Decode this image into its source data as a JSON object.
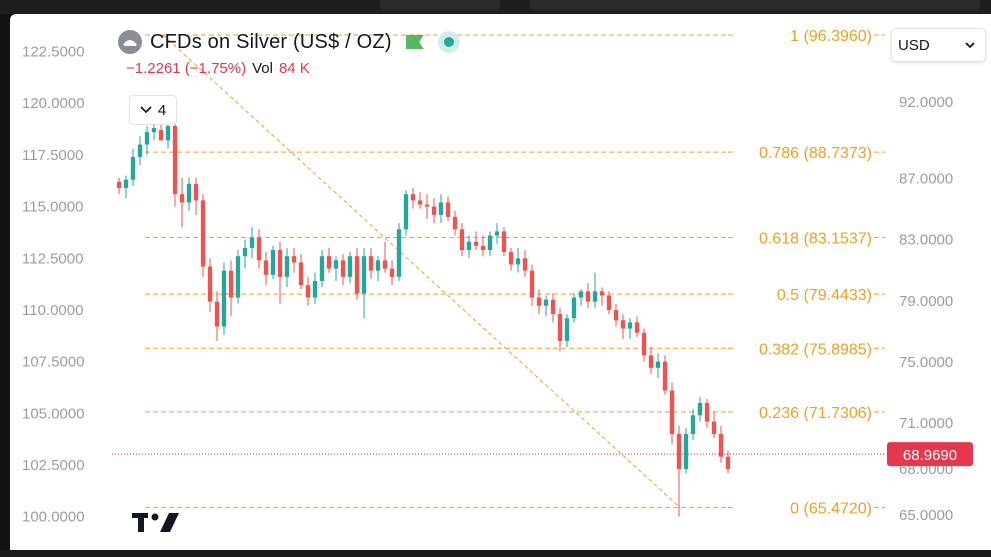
{
  "legend": {
    "title": "CFDs on Silver (US$ / OZ)",
    "change": "−1.2261 (−1.75%)",
    "vol_label": "Vol",
    "vol_value": "84 K"
  },
  "controls": {
    "collapse_count": "4",
    "currency": "USD"
  },
  "colors": {
    "up": "#26a69a",
    "down": "#ef5350",
    "fib": "#f0a020",
    "price_tag": "#e5384c",
    "axis_text": "#9a9da6"
  },
  "chart_data": {
    "type": "candlestick",
    "left_axis": {
      "ticks": [
        "122.5000",
        "120.0000",
        "117.5000",
        "115.0000",
        "112.5000",
        "110.0000",
        "107.5000",
        "105.0000",
        "102.5000",
        "100.0000"
      ],
      "range": [
        99.5,
        123.3
      ]
    },
    "right_axis": {
      "ticks": [
        "92.0000",
        "87.0000",
        "83.0000",
        "79.0000",
        "75.0000",
        "71.0000",
        "68.0000",
        "65.0000"
      ],
      "range": [
        64.2,
        96.4
      ]
    },
    "last_price": "68.9690",
    "fibonacci": [
      {
        "label": "1 (96.3960)",
        "ratio": 1,
        "price": 96.396
      },
      {
        "label": "0.786 (88.7373)",
        "ratio": 0.786,
        "price": 88.7373
      },
      {
        "label": "0.618 (83.1537)",
        "ratio": 0.618,
        "price": 83.1537
      },
      {
        "label": "0.5 (79.4433)",
        "ratio": 0.5,
        "price": 79.4433
      },
      {
        "label": "0.382 (75.8985)",
        "ratio": 0.382,
        "price": 75.8985
      },
      {
        "label": "0.236 (71.7306)",
        "ratio": 0.236,
        "price": 71.7306
      },
      {
        "label": "0 (65.4720)",
        "ratio": 0,
        "price": 65.472
      }
    ],
    "candles": [
      [
        116.2,
        116.4,
        115.6,
        115.9
      ],
      [
        115.9,
        116.5,
        115.4,
        116.3
      ],
      [
        116.3,
        117.8,
        116.0,
        117.4
      ],
      [
        117.4,
        118.4,
        117.0,
        118.0
      ],
      [
        118.0,
        118.9,
        117.5,
        118.6
      ],
      [
        118.6,
        119.0,
        118.2,
        118.8
      ],
      [
        118.7,
        119.4,
        118.4,
        118.2
      ],
      [
        118.2,
        119.0,
        117.8,
        118.9
      ],
      [
        118.9,
        119.4,
        115.0,
        115.6
      ],
      [
        115.6,
        116.4,
        114.0,
        115.2
      ],
      [
        115.2,
        116.4,
        114.8,
        116.1
      ],
      [
        116.1,
        116.4,
        114.6,
        115.3
      ],
      [
        115.3,
        115.6,
        111.6,
        112.1
      ],
      [
        112.1,
        112.5,
        109.9,
        110.4
      ],
      [
        110.4,
        110.9,
        108.5,
        109.2
      ],
      [
        109.2,
        112.3,
        108.8,
        111.9
      ],
      [
        111.9,
        112.4,
        109.7,
        110.6
      ],
      [
        110.6,
        112.9,
        110.3,
        112.6
      ],
      [
        112.6,
        113.4,
        112.0,
        113.0
      ],
      [
        113.0,
        114.0,
        112.5,
        113.5
      ],
      [
        113.5,
        113.9,
        112.0,
        112.4
      ],
      [
        112.4,
        112.8,
        111.2,
        111.7
      ],
      [
        111.7,
        113.1,
        111.5,
        112.9
      ],
      [
        112.9,
        113.3,
        110.3,
        111.6
      ],
      [
        111.6,
        113.0,
        111.1,
        112.6
      ],
      [
        112.6,
        113.0,
        111.8,
        112.3
      ],
      [
        112.3,
        112.7,
        111.0,
        111.2
      ],
      [
        111.2,
        111.6,
        110.2,
        110.6
      ],
      [
        110.6,
        111.8,
        110.3,
        111.4
      ],
      [
        111.4,
        112.9,
        111.1,
        112.6
      ],
      [
        112.6,
        113.0,
        111.8,
        112.0
      ],
      [
        112.0,
        112.6,
        111.4,
        112.4
      ],
      [
        112.4,
        112.7,
        111.2,
        111.6
      ],
      [
        111.6,
        112.8,
        111.3,
        112.6
      ],
      [
        112.6,
        113.0,
        110.5,
        110.8
      ],
      [
        110.8,
        113.0,
        109.6,
        112.6
      ],
      [
        112.6,
        113.0,
        111.5,
        111.9
      ],
      [
        111.9,
        112.6,
        111.4,
        112.4
      ],
      [
        112.4,
        113.3,
        111.8,
        112.0
      ],
      [
        112.0,
        112.4,
        111.2,
        111.6
      ],
      [
        111.6,
        114.2,
        111.4,
        113.9
      ],
      [
        113.9,
        115.8,
        113.6,
        115.6
      ],
      [
        115.6,
        115.9,
        114.9,
        115.3
      ],
      [
        115.3,
        115.7,
        114.9,
        115.1
      ],
      [
        115.1,
        115.6,
        114.4,
        115.0
      ],
      [
        115.0,
        115.4,
        114.2,
        114.6
      ],
      [
        114.6,
        115.6,
        114.2,
        115.2
      ],
      [
        115.2,
        115.5,
        114.3,
        114.5
      ],
      [
        114.5,
        114.8,
        113.6,
        113.9
      ],
      [
        113.9,
        114.2,
        112.6,
        112.9
      ],
      [
        112.9,
        113.6,
        112.5,
        113.3
      ],
      [
        113.3,
        113.8,
        112.9,
        113.1
      ],
      [
        113.1,
        113.6,
        112.6,
        112.9
      ],
      [
        112.9,
        113.8,
        112.6,
        113.6
      ],
      [
        113.6,
        114.2,
        113.2,
        113.8
      ],
      [
        113.8,
        114.0,
        112.6,
        112.8
      ],
      [
        112.8,
        113.0,
        111.9,
        112.2
      ],
      [
        112.2,
        113.0,
        111.8,
        112.5
      ],
      [
        112.5,
        112.9,
        111.6,
        111.9
      ],
      [
        111.9,
        112.2,
        110.2,
        110.6
      ],
      [
        110.6,
        111.0,
        109.8,
        110.2
      ],
      [
        110.2,
        110.7,
        109.7,
        110.5
      ],
      [
        110.5,
        110.8,
        109.4,
        109.8
      ],
      [
        109.8,
        110.1,
        108.0,
        108.5
      ],
      [
        108.5,
        109.8,
        108.2,
        109.6
      ],
      [
        109.6,
        110.8,
        109.4,
        110.6
      ],
      [
        110.6,
        111.0,
        110.2,
        110.9
      ],
      [
        110.9,
        111.3,
        110.1,
        110.4
      ],
      [
        110.4,
        111.8,
        110.1,
        110.9
      ],
      [
        110.9,
        111.1,
        110.2,
        110.7
      ],
      [
        110.7,
        110.9,
        109.8,
        110.0
      ],
      [
        110.0,
        110.3,
        109.2,
        109.5
      ],
      [
        109.5,
        109.8,
        108.6,
        109.1
      ],
      [
        109.1,
        109.6,
        108.6,
        109.4
      ],
      [
        109.4,
        109.7,
        108.7,
        108.9
      ],
      [
        108.9,
        109.1,
        107.5,
        107.8
      ],
      [
        107.8,
        108.2,
        106.9,
        107.2
      ],
      [
        107.2,
        107.9,
        106.7,
        107.5
      ],
      [
        107.5,
        107.8,
        105.9,
        106.1
      ],
      [
        106.1,
        106.5,
        103.5,
        104.0
      ],
      [
        104.0,
        104.4,
        100.0,
        102.3
      ],
      [
        102.3,
        104.3,
        102.1,
        104.0
      ],
      [
        104.0,
        105.2,
        103.7,
        104.9
      ],
      [
        104.9,
        105.8,
        104.6,
        105.5
      ],
      [
        105.5,
        105.7,
        104.3,
        104.6
      ],
      [
        104.6,
        105.1,
        103.8,
        104.0
      ],
      [
        104.0,
        104.4,
        102.6,
        102.9
      ],
      [
        102.9,
        103.2,
        102.1,
        102.3
      ]
    ]
  }
}
